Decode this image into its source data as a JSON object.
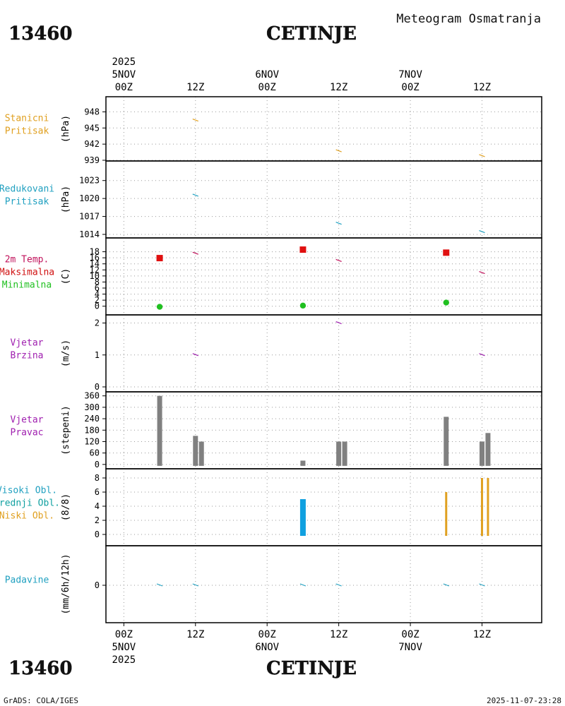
{
  "header": {
    "station_id": "13460",
    "station_name": "CETINJE",
    "product": "Meteogram Osmatranja"
  },
  "footer": {
    "station_id": "13460",
    "station_name": "CETINJE",
    "credit": "GrADS: COLA/IGES",
    "timestamp": "2025-11-07-23:28"
  },
  "time_axis": {
    "ticks": [
      {
        "t": 0,
        "label": "00Z",
        "date": "5NOV",
        "year": "2025"
      },
      {
        "t": 12,
        "label": "12Z"
      },
      {
        "t": 24,
        "label": "00Z",
        "date": "6NOV"
      },
      {
        "t": 36,
        "label": "12Z"
      },
      {
        "t": 48,
        "label": "00Z",
        "date": "7NOV"
      },
      {
        "t": 60,
        "label": "12Z"
      }
    ],
    "range_hours": [
      -3,
      70
    ]
  },
  "colors": {
    "orange": "#e0a020",
    "cyan": "#20a0c0",
    "crimson": "#c0105a",
    "green": "#20c020",
    "purple": "#a020b0",
    "gray": "#808080",
    "red": "#e01010",
    "blue": "#10a0e0"
  },
  "chart_data": [
    {
      "id": "stanicni",
      "type": "line",
      "labels": [
        {
          "text": "Stanicni",
          "color": "#e0a020"
        },
        {
          "text": "Pritisak",
          "color": "#e0a020"
        }
      ],
      "ylabel": "(hPa)",
      "ylim": [
        939,
        949.5
      ],
      "yticks": [
        948,
        945,
        942,
        939
      ],
      "series": [
        {
          "name": "Stanicni Pritisak",
          "color": "#e0a020",
          "points": [
            [
              12,
              946.4
            ],
            [
              36,
              940.7
            ],
            [
              60,
              939.8
            ]
          ]
        }
      ]
    },
    {
      "id": "redukovani",
      "type": "line",
      "labels": [
        {
          "text": "Redukovani",
          "color": "#20a0c0"
        },
        {
          "text": "Pritisak",
          "color": "#20a0c0"
        }
      ],
      "ylabel": "(hPa)",
      "ylim": [
        1014,
        1024.5
      ],
      "yticks": [
        1023,
        1020,
        1017,
        1014
      ],
      "series": [
        {
          "name": "Redukovani Pritisak",
          "color": "#20a0c0",
          "points": [
            [
              12,
              1020.5
            ],
            [
              36,
              1015.8
            ],
            [
              60,
              1014.4
            ]
          ]
        }
      ]
    },
    {
      "id": "temperatura",
      "type": "line",
      "labels": [
        {
          "text": "2m Temp.",
          "color": "#c0105a"
        },
        {
          "text": "Maksimalna",
          "color": "#d01010"
        },
        {
          "text": "Minimalna",
          "color": "#20c020"
        }
      ],
      "ylabel": "(C)",
      "ylim": [
        -1,
        20
      ],
      "yticks": [
        18,
        16,
        14,
        12,
        10,
        8,
        6,
        4,
        2,
        0
      ],
      "series": [
        {
          "name": "2m Temp.",
          "color": "#c0105a",
          "points": [
            [
              12,
              17.4
            ],
            [
              36,
              15.0
            ],
            [
              60,
              11.0
            ]
          ]
        },
        {
          "name": "Maksimalna",
          "color": "#e01010",
          "marker": "square",
          "points": [
            [
              6,
              15.9
            ],
            [
              30,
              18.7
            ],
            [
              54,
              17.7
            ]
          ]
        },
        {
          "name": "Minimalna",
          "color": "#20c020",
          "marker": "circle",
          "points": [
            [
              6,
              -0.2
            ],
            [
              30,
              0.2
            ],
            [
              54,
              1.2
            ]
          ]
        }
      ]
    },
    {
      "id": "brzina",
      "type": "line",
      "labels": [
        {
          "text": "Vjetar",
          "color": "#a020b0"
        },
        {
          "text": "Brzina",
          "color": "#a020b0"
        }
      ],
      "ylabel": "(m/s)",
      "ylim": [
        0,
        2.1
      ],
      "yticks": [
        2,
        1,
        0
      ],
      "series": [
        {
          "name": "Vjetar Brzina",
          "color": "#a020b0",
          "points": [
            [
              12,
              1
            ],
            [
              36,
              2
            ],
            [
              60,
              1
            ]
          ]
        }
      ]
    },
    {
      "id": "pravac",
      "type": "bar",
      "labels": [
        {
          "text": "Vjetar",
          "color": "#a020b0"
        },
        {
          "text": "Pravac",
          "color": "#a020b0"
        }
      ],
      "ylabel": "(stepeni)",
      "ylim": [
        -8,
        370
      ],
      "yticks": [
        360,
        300,
        240,
        180,
        120,
        60,
        0
      ],
      "series": [
        {
          "name": "Vjetar Pravac",
          "color": "#808080",
          "points": [
            [
              6,
              360
            ],
            [
              12,
              150
            ],
            [
              13,
              120
            ],
            [
              30,
              20
            ],
            [
              36,
              120
            ],
            [
              37,
              120
            ],
            [
              54,
              250
            ],
            [
              60,
              120
            ],
            [
              61,
              165
            ]
          ]
        }
      ]
    },
    {
      "id": "oblaci",
      "type": "bar",
      "labels": [
        {
          "text": "Visoki Obl.",
          "color": "#20a0c0"
        },
        {
          "text": "Srednji Obl.",
          "color": "#10a0a0"
        },
        {
          "text": "Niski Obl.",
          "color": "#e0a020"
        }
      ],
      "ylabel": "(8/8)",
      "ylim": [
        -0.5,
        8.4
      ],
      "yticks": [
        8,
        6,
        4,
        2,
        0
      ],
      "series": [
        {
          "name": "Srednji Obl.",
          "color": "#10a0e0",
          "width": 8,
          "points": [
            [
              30,
              5
            ]
          ]
        },
        {
          "name": "Niski Obl.",
          "color": "#e0a020",
          "width": 3,
          "points": [
            [
              54,
              6
            ],
            [
              60,
              8
            ],
            [
              61,
              8
            ]
          ]
        }
      ]
    },
    {
      "id": "padavine",
      "type": "line",
      "labels": [
        {
          "text": "Padavine",
          "color": "#20a0c0"
        }
      ],
      "ylabel": "(mm/6h/12h)",
      "ylim": [
        -5,
        5
      ],
      "yticks": [
        0
      ],
      "series": [
        {
          "name": "Padavine",
          "color": "#20a0c0",
          "points": [
            [
              6,
              0
            ],
            [
              12,
              0
            ],
            [
              30,
              0
            ],
            [
              36,
              0
            ],
            [
              54,
              0
            ],
            [
              60,
              0
            ]
          ]
        }
      ]
    }
  ]
}
